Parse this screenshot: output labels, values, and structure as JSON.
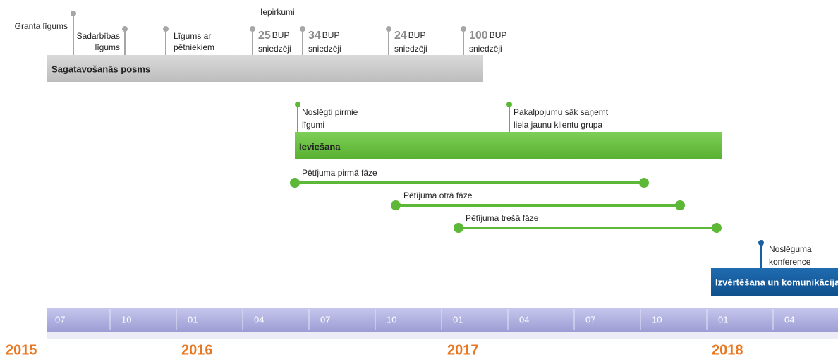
{
  "preparation": {
    "title": "Sagatavošanās posms",
    "header": "Iepirkumi",
    "milestones": [
      {
        "lines": [
          "Granta līgums"
        ]
      },
      {
        "lines": [
          "Sadarbības",
          "līgums"
        ]
      },
      {
        "lines": [
          "Līgums ar",
          "pētniekiem"
        ]
      }
    ],
    "procurements": [
      {
        "number": "25",
        "unit": "BUP",
        "line2": "sniedzēji"
      },
      {
        "number": "34",
        "unit": "BUP",
        "line2": "sniedzēji"
      },
      {
        "number": "24",
        "unit": "BUP",
        "line2": "sniedzēji"
      },
      {
        "number": "100",
        "unit": "BUP",
        "line2": "sniedzēji"
      }
    ]
  },
  "implementation": {
    "title": "Ieviešana",
    "milestones": [
      {
        "lines": [
          "Noslēgti pirmie",
          "līgumi"
        ]
      },
      {
        "lines": [
          "Pakalpojumu sāk saņemt",
          "liela jaunu klientu grupa"
        ]
      }
    ],
    "phases": [
      "Pētījuma pirmā fāze",
      "Pētījuma otrā fāze",
      "Pētījuma trešā fāze"
    ]
  },
  "evaluation": {
    "title": "Izvērtēšana un komunikācija",
    "milestone": [
      "Noslēguma",
      "konference"
    ]
  },
  "timeline": {
    "months": [
      "07",
      "10",
      "01",
      "04",
      "07",
      "10",
      "01",
      "04",
      "07",
      "10",
      "01",
      "04"
    ],
    "years": [
      "2015",
      "2016",
      "2017",
      "2018"
    ]
  }
}
